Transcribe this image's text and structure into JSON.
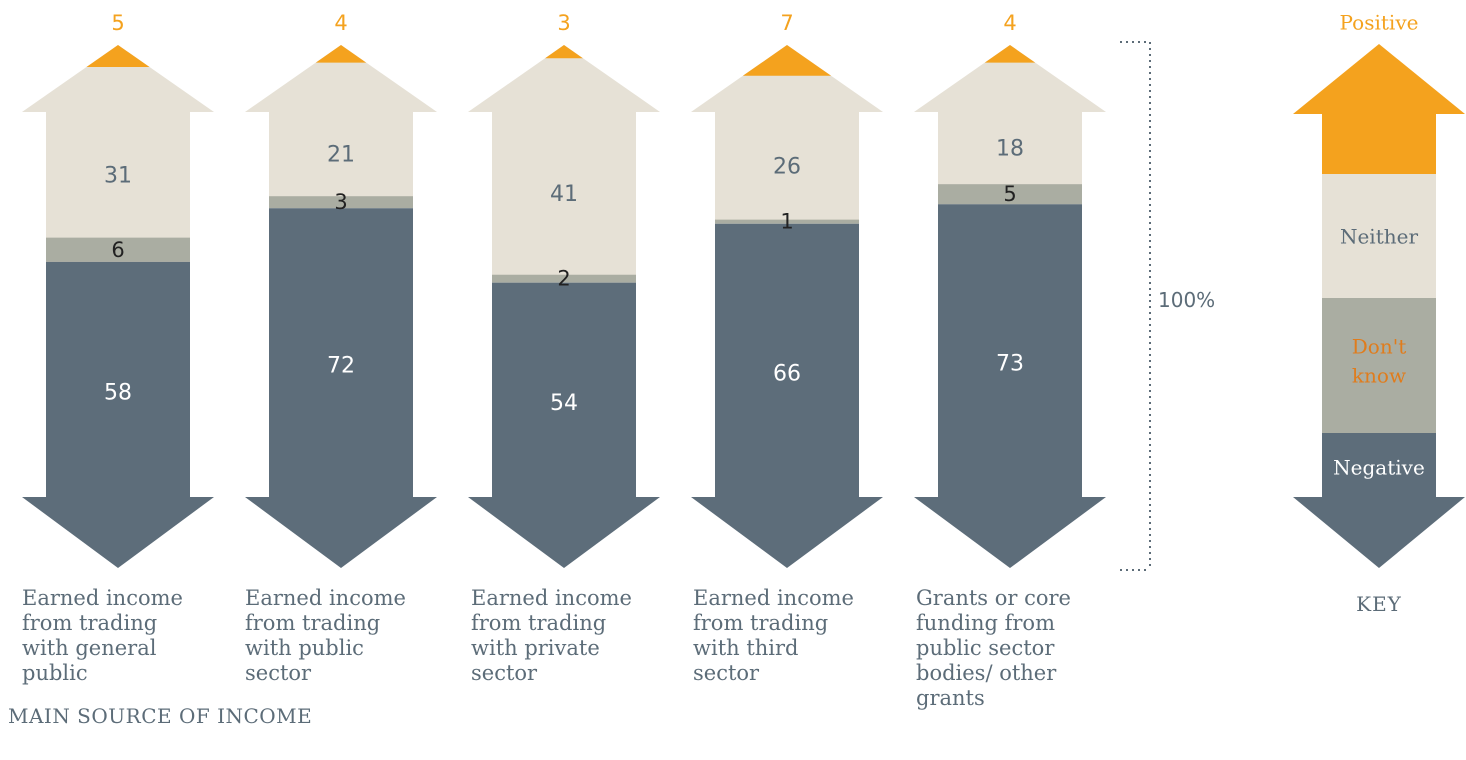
{
  "chart_data": {
    "type": "bar",
    "stacked": true,
    "categories": [
      "Earned income from trading with general public",
      "Earned income from trading with public sector",
      "Earned income from trading with private sector",
      "Earned income from trading with third sector",
      "Grants or core funding from public sector bodies/ other grants"
    ],
    "category_lines": [
      [
        "Earned income",
        "from trading",
        "with general",
        "public"
      ],
      [
        "Earned income",
        "from trading",
        "with public",
        "sector"
      ],
      [
        "Earned income",
        "from trading",
        "with private",
        "sector"
      ],
      [
        "Earned income",
        "from trading",
        "with third",
        "sector"
      ],
      [
        "Grants or core",
        "funding from",
        "public sector",
        "bodies/ other",
        "grants"
      ]
    ],
    "series": [
      {
        "name": "Negative",
        "values": [
          58,
          72,
          54,
          66,
          73
        ]
      },
      {
        "name": "Don't know",
        "values": [
          6,
          3,
          2,
          1,
          5
        ]
      },
      {
        "name": "Neither",
        "values": [
          31,
          21,
          41,
          26,
          18
        ]
      },
      {
        "name": "Positive",
        "values": [
          5,
          4,
          3,
          7,
          4
        ]
      }
    ],
    "xlabel": "MAIN SOURCE OF INCOME",
    "scale_label": "100%",
    "legend_title": "KEY",
    "legend_position": "right",
    "colors": {
      "Negative": "#5d6d7a",
      "Don't know": "#aaada2",
      "Neither": "#e6e1d6",
      "Positive": "#f4a21e",
      "text_dark": "#5c6c78",
      "text_light": "#ffffff",
      "dont_know_key_text": "#e07c1c"
    }
  }
}
